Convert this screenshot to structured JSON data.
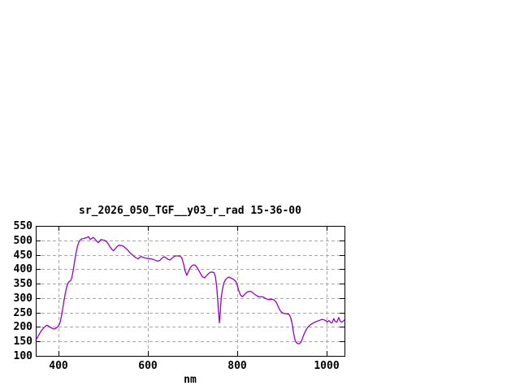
{
  "window": {
    "background": "#ffffff"
  },
  "chart_data": {
    "type": "line",
    "title": "sr_2026_050_TGF__y03_r_rad 15-36-00",
    "xlabel": "nm",
    "ylabel": "",
    "xlim": [
      349,
      1040
    ],
    "ylim": [
      100,
      550
    ],
    "x_ticks": [
      400,
      600,
      800,
      1000
    ],
    "y_ticks": [
      100,
      150,
      200,
      250,
      300,
      350,
      400,
      450,
      500,
      550
    ],
    "grid": true,
    "legend_position": "none",
    "colors": {
      "line": "#9400d3",
      "grid": "#a8a8a8",
      "axis": "#000000",
      "text": "#000000",
      "background": "#ffffff"
    },
    "series": [
      {
        "name": "sr_2026_050_TGF__y03_r_rad 15-36-00",
        "points": [
          [
            349,
            155
          ],
          [
            352,
            161
          ],
          [
            355,
            170
          ],
          [
            358,
            178
          ],
          [
            361,
            186
          ],
          [
            365,
            194
          ],
          [
            368,
            199
          ],
          [
            371,
            203
          ],
          [
            374,
            206
          ],
          [
            377,
            204
          ],
          [
            380,
            200
          ],
          [
            384,
            197
          ],
          [
            388,
            194
          ],
          [
            391,
            193
          ],
          [
            394,
            196
          ],
          [
            397,
            199
          ],
          [
            400,
            204
          ],
          [
            403,
            214
          ],
          [
            406,
            233
          ],
          [
            409,
            260
          ],
          [
            412,
            289
          ],
          [
            415,
            315
          ],
          [
            418,
            337
          ],
          [
            421,
            351
          ],
          [
            424,
            357
          ],
          [
            427,
            360
          ],
          [
            430,
            372
          ],
          [
            433,
            397
          ],
          [
            436,
            427
          ],
          [
            439,
            455
          ],
          [
            442,
            477
          ],
          [
            445,
            492
          ],
          [
            448,
            500
          ],
          [
            452,
            505
          ],
          [
            456,
            506
          ],
          [
            460,
            508
          ],
          [
            464,
            510
          ],
          [
            467,
            513
          ],
          [
            469,
            508
          ],
          [
            471,
            503
          ],
          [
            474,
            506
          ],
          [
            477,
            510
          ],
          [
            480,
            507
          ],
          [
            483,
            502
          ],
          [
            486,
            496
          ],
          [
            489,
            492
          ],
          [
            492,
            497
          ],
          [
            495,
            503
          ],
          [
            499,
            501
          ],
          [
            503,
            500
          ],
          [
            507,
            496
          ],
          [
            511,
            488
          ],
          [
            515,
            478
          ],
          [
            519,
            469
          ],
          [
            523,
            464
          ],
          [
            527,
            471
          ],
          [
            531,
            478
          ],
          [
            535,
            483
          ],
          [
            540,
            482
          ],
          [
            545,
            480
          ],
          [
            550,
            473
          ],
          [
            555,
            466
          ],
          [
            560,
            457
          ],
          [
            565,
            450
          ],
          [
            570,
            443
          ],
          [
            575,
            438
          ],
          [
            578,
            436
          ],
          [
            582,
            441
          ],
          [
            585,
            444
          ],
          [
            589,
            441
          ],
          [
            594,
            439
          ],
          [
            600,
            437
          ],
          [
            606,
            436
          ],
          [
            612,
            434
          ],
          [
            618,
            430
          ],
          [
            623,
            428
          ],
          [
            627,
            431
          ],
          [
            632,
            439
          ],
          [
            636,
            443
          ],
          [
            641,
            439
          ],
          [
            645,
            434
          ],
          [
            649,
            432
          ],
          [
            653,
            437
          ],
          [
            658,
            443
          ],
          [
            662,
            446
          ],
          [
            667,
            446
          ],
          [
            672,
            445
          ],
          [
            676,
            439
          ],
          [
            680,
            418
          ],
          [
            683,
            395
          ],
          [
            687,
            379
          ],
          [
            690,
            389
          ],
          [
            694,
            403
          ],
          [
            698,
            411
          ],
          [
            702,
            415
          ],
          [
            706,
            414
          ],
          [
            710,
            406
          ],
          [
            714,
            396
          ],
          [
            718,
            384
          ],
          [
            722,
            374
          ],
          [
            727,
            370
          ],
          [
            731,
            377
          ],
          [
            735,
            384
          ],
          [
            739,
            389
          ],
          [
            744,
            390
          ],
          [
            748,
            388
          ],
          [
            751,
            375
          ],
          [
            754,
            340
          ],
          [
            756,
            300
          ],
          [
            758,
            255
          ],
          [
            760,
            214
          ],
          [
            762,
            250
          ],
          [
            764,
            300
          ],
          [
            767,
            332
          ],
          [
            770,
            352
          ],
          [
            773,
            362
          ],
          [
            777,
            369
          ],
          [
            781,
            373
          ],
          [
            785,
            370
          ],
          [
            789,
            367
          ],
          [
            793,
            363
          ],
          [
            797,
            357
          ],
          [
            800,
            345
          ],
          [
            803,
            327
          ],
          [
            807,
            311
          ],
          [
            811,
            305
          ],
          [
            815,
            310
          ],
          [
            819,
            317
          ],
          [
            824,
            322
          ],
          [
            829,
            324
          ],
          [
            834,
            320
          ],
          [
            839,
            313
          ],
          [
            844,
            308
          ],
          [
            849,
            304
          ],
          [
            854,
            305
          ],
          [
            859,
            303
          ],
          [
            863,
            299
          ],
          [
            867,
            296
          ],
          [
            872,
            295
          ],
          [
            877,
            296
          ],
          [
            882,
            294
          ],
          [
            887,
            286
          ],
          [
            891,
            273
          ],
          [
            895,
            259
          ],
          [
            899,
            251
          ],
          [
            904,
            247
          ],
          [
            909,
            246
          ],
          [
            914,
            245
          ],
          [
            917,
            241
          ],
          [
            920,
            230
          ],
          [
            923,
            209
          ],
          [
            926,
            180
          ],
          [
            929,
            156
          ],
          [
            932,
            146
          ],
          [
            935,
            143
          ],
          [
            938,
            142
          ],
          [
            941,
            145
          ],
          [
            944,
            152
          ],
          [
            947,
            166
          ],
          [
            951,
            181
          ],
          [
            955,
            193
          ],
          [
            959,
            201
          ],
          [
            964,
            208
          ],
          [
            969,
            213
          ],
          [
            974,
            217
          ],
          [
            979,
            220
          ],
          [
            984,
            223
          ],
          [
            989,
            226
          ],
          [
            994,
            225
          ],
          [
            999,
            221
          ],
          [
            1001,
            217
          ],
          [
            1005,
            222
          ],
          [
            1009,
            216
          ],
          [
            1012,
            214
          ],
          [
            1016,
            229
          ],
          [
            1019,
            219
          ],
          [
            1023,
            217
          ],
          [
            1027,
            233
          ],
          [
            1030,
            221
          ],
          [
            1033,
            217
          ],
          [
            1037,
            220
          ],
          [
            1040,
            224
          ]
        ]
      }
    ]
  }
}
